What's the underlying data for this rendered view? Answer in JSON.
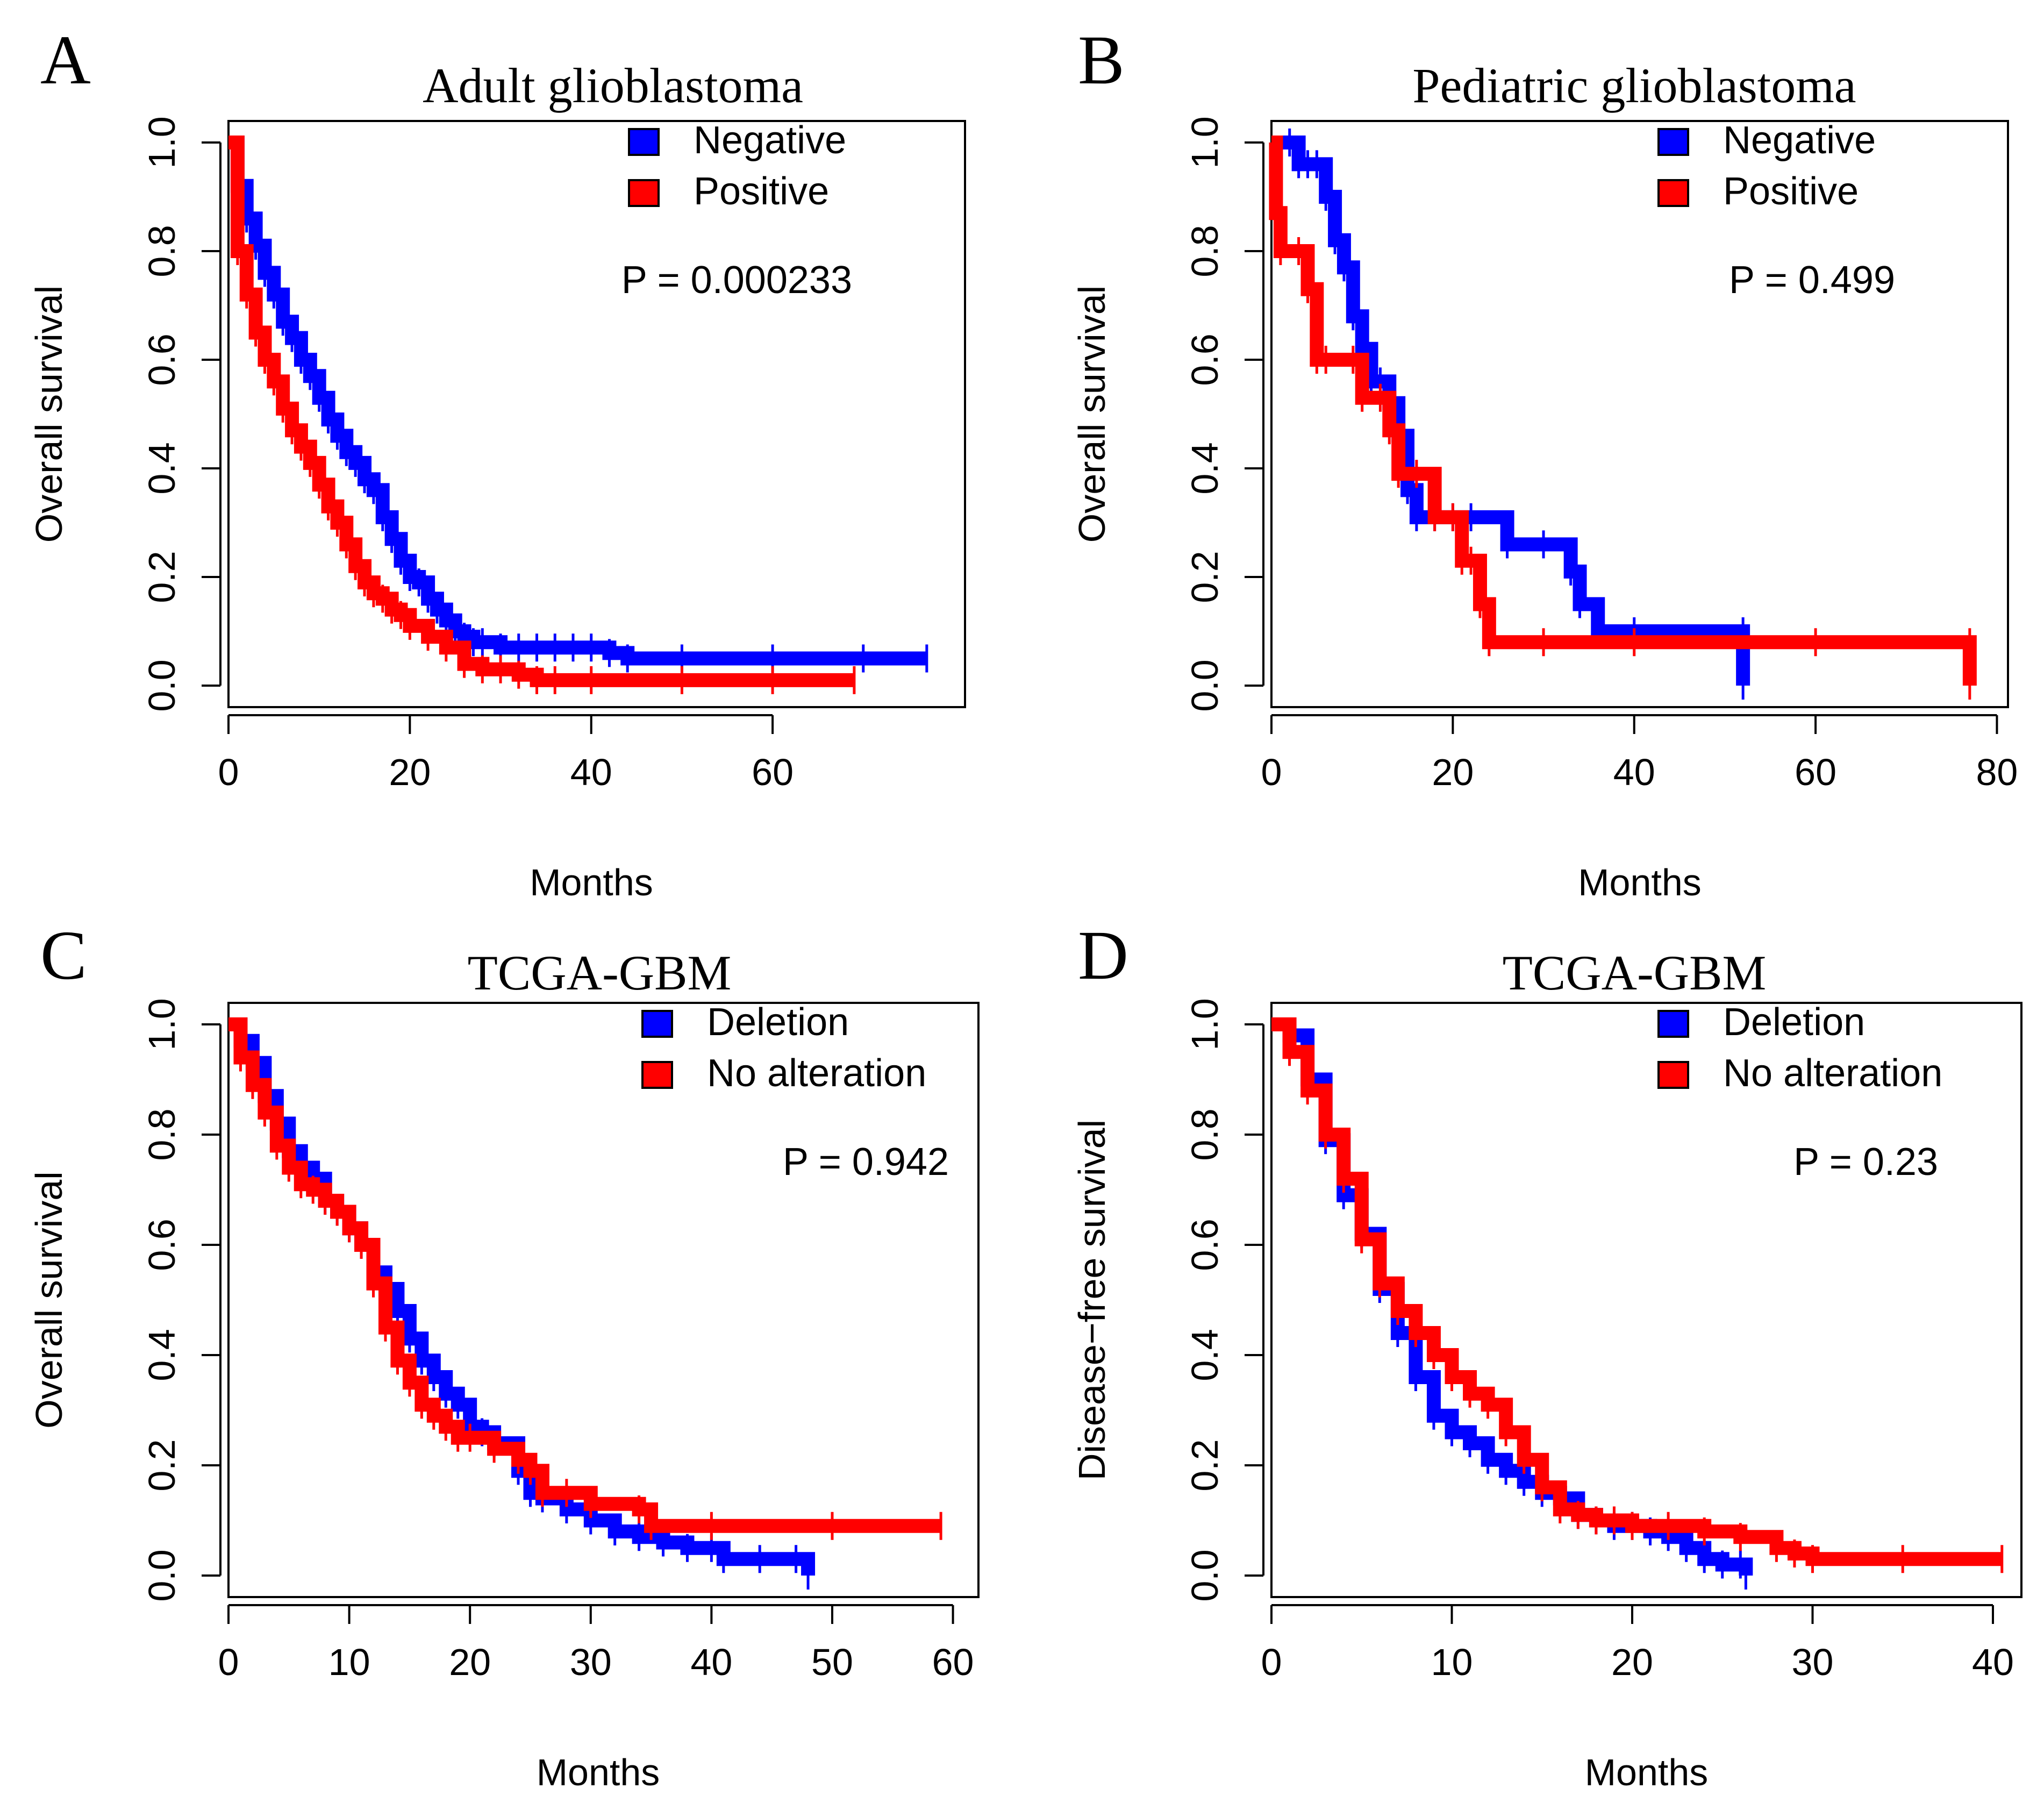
{
  "figure": {
    "background": "#ffffff"
  },
  "chart_data": [
    {
      "type": "line",
      "kind": "kaplan-meier",
      "panel": "A",
      "title": "Adult glioblastoma",
      "xlabel": "Months",
      "ylabel": "Overall survival",
      "xlim": [
        0,
        80
      ],
      "ylim": [
        0,
        1
      ],
      "xticks": [
        "0",
        "20",
        "40",
        "60"
      ],
      "yticks": [
        "0.0",
        "0.2",
        "0.4",
        "0.6",
        "0.8",
        "1.0"
      ],
      "pvalue": "P = 0.000233",
      "legend_position": "top-right",
      "series": [
        {
          "name": "Negative",
          "color": "#0000ff",
          "x": [
            0,
            1,
            2,
            3,
            4,
            5,
            6,
            7,
            8,
            9,
            10,
            11,
            12,
            13,
            14,
            15,
            16,
            17,
            18,
            19,
            20,
            21,
            22,
            23,
            24,
            25,
            26,
            27,
            28,
            30,
            32,
            34,
            36,
            38,
            40,
            42,
            44,
            50,
            60,
            70,
            77
          ],
          "y": [
            1.0,
            0.92,
            0.86,
            0.81,
            0.76,
            0.72,
            0.67,
            0.64,
            0.6,
            0.57,
            0.53,
            0.49,
            0.46,
            0.43,
            0.41,
            0.38,
            0.36,
            0.31,
            0.27,
            0.23,
            0.2,
            0.19,
            0.16,
            0.14,
            0.12,
            0.1,
            0.09,
            0.08,
            0.08,
            0.07,
            0.07,
            0.07,
            0.07,
            0.07,
            0.07,
            0.06,
            0.05,
            0.05,
            0.05,
            0.05,
            0.05
          ]
        },
        {
          "name": "Positive",
          "color": "#ff0000",
          "x": [
            0,
            1,
            2,
            3,
            4,
            5,
            6,
            7,
            8,
            9,
            10,
            11,
            12,
            13,
            14,
            15,
            16,
            17,
            18,
            19,
            20,
            22,
            24,
            26,
            28,
            30,
            32,
            34,
            36,
            40,
            50,
            60,
            69
          ],
          "y": [
            1.0,
            0.8,
            0.72,
            0.65,
            0.6,
            0.56,
            0.51,
            0.47,
            0.44,
            0.41,
            0.37,
            0.33,
            0.3,
            0.26,
            0.22,
            0.19,
            0.17,
            0.16,
            0.14,
            0.13,
            0.11,
            0.09,
            0.07,
            0.04,
            0.03,
            0.03,
            0.02,
            0.01,
            0.01,
            0.01,
            0.01,
            0.01,
            0.01
          ]
        }
      ]
    },
    {
      "type": "line",
      "kind": "kaplan-meier",
      "panel": "B",
      "title": "Pediatric glioblastoma",
      "xlabel": "Months",
      "ylabel": "Overall survival",
      "xlim": [
        0,
        80
      ],
      "ylim": [
        0,
        1
      ],
      "xticks": [
        "0",
        "20",
        "40",
        "60",
        "80"
      ],
      "yticks": [
        "0.0",
        "0.2",
        "0.4",
        "0.6",
        "0.8",
        "1.0"
      ],
      "pvalue": "P = 0.499",
      "legend_position": "top-right",
      "series": [
        {
          "name": "Negative",
          "color": "#0000ff",
          "x": [
            0,
            2,
            3,
            4,
            5,
            6,
            7,
            8,
            9,
            10,
            11,
            12,
            13,
            14,
            15,
            16,
            18,
            20,
            22,
            26,
            30,
            33,
            34,
            36,
            40,
            52,
            52
          ],
          "y": [
            1.0,
            1.0,
            0.96,
            0.96,
            0.96,
            0.9,
            0.82,
            0.77,
            0.68,
            0.62,
            0.56,
            0.56,
            0.52,
            0.46,
            0.36,
            0.31,
            0.31,
            0.31,
            0.31,
            0.26,
            0.26,
            0.21,
            0.15,
            0.1,
            0.1,
            0.1,
            0.0
          ]
        },
        {
          "name": "Positive",
          "color": "#ff0000",
          "x": [
            0,
            0.5,
            1,
            3,
            4,
            5,
            6,
            9,
            10,
            12,
            13,
            14,
            16,
            18,
            20,
            21,
            22,
            23,
            24,
            30,
            40,
            60,
            77,
            77
          ],
          "y": [
            1.0,
            0.87,
            0.8,
            0.8,
            0.73,
            0.6,
            0.6,
            0.6,
            0.53,
            0.53,
            0.47,
            0.39,
            0.39,
            0.31,
            0.31,
            0.23,
            0.23,
            0.15,
            0.08,
            0.08,
            0.08,
            0.08,
            0.08,
            0.0
          ]
        }
      ]
    },
    {
      "type": "line",
      "kind": "kaplan-meier",
      "panel": "C",
      "title": "TCGA-GBM",
      "xlabel": "Months",
      "ylabel": "Overall survival",
      "xlim": [
        0,
        60
      ],
      "ylim": [
        0,
        1
      ],
      "xticks": [
        "0",
        "10",
        "20",
        "30",
        "40",
        "50",
        "60"
      ],
      "yticks": [
        "0.0",
        "0.2",
        "0.4",
        "0.6",
        "0.8",
        "1.0"
      ],
      "pvalue": "P = 0.942",
      "legend_position": "top-right",
      "series": [
        {
          "name": "Deletion",
          "color": "#0000ff",
          "x": [
            0,
            1,
            2,
            3,
            4,
            5,
            6,
            7,
            8,
            9,
            10,
            11,
            12,
            13,
            14,
            15,
            16,
            17,
            18,
            19,
            20,
            21,
            22,
            24,
            25,
            26,
            28,
            30,
            32,
            34,
            36,
            38,
            40,
            41,
            44,
            47,
            48
          ],
          "y": [
            1.0,
            0.97,
            0.93,
            0.87,
            0.82,
            0.77,
            0.74,
            0.72,
            0.68,
            0.66,
            0.63,
            0.6,
            0.55,
            0.52,
            0.48,
            0.43,
            0.39,
            0.36,
            0.33,
            0.31,
            0.27,
            0.26,
            0.24,
            0.19,
            0.15,
            0.14,
            0.12,
            0.1,
            0.08,
            0.07,
            0.06,
            0.05,
            0.05,
            0.03,
            0.03,
            0.03,
            0.0
          ]
        },
        {
          "name": "No alteration",
          "color": "#ff0000",
          "x": [
            0,
            1,
            2,
            3,
            4,
            5,
            6,
            7,
            8,
            9,
            10,
            11,
            12,
            13,
            14,
            15,
            16,
            17,
            18,
            19,
            20,
            22,
            24,
            25,
            26,
            28,
            30,
            34,
            35,
            40,
            50,
            59
          ],
          "y": [
            1.0,
            0.94,
            0.89,
            0.84,
            0.78,
            0.74,
            0.71,
            0.7,
            0.68,
            0.66,
            0.63,
            0.6,
            0.53,
            0.45,
            0.39,
            0.35,
            0.31,
            0.29,
            0.27,
            0.25,
            0.25,
            0.23,
            0.21,
            0.19,
            0.15,
            0.15,
            0.13,
            0.12,
            0.09,
            0.09,
            0.09,
            0.09
          ]
        }
      ]
    },
    {
      "type": "line",
      "kind": "kaplan-meier",
      "panel": "D",
      "title": "TCGA-GBM",
      "xlabel": "Months",
      "ylabel": "Disease−free survival",
      "xlim": [
        0,
        40
      ],
      "ylim": [
        0,
        1
      ],
      "xticks": [
        "0",
        "10",
        "20",
        "30",
        "40"
      ],
      "yticks": [
        "0.0",
        "0.2",
        "0.4",
        "0.6",
        "0.8",
        "1.0"
      ],
      "pvalue": "P = 0.23",
      "legend_position": "top-right",
      "series": [
        {
          "name": "Deletion",
          "color": "#0000ff",
          "x": [
            0,
            1,
            2,
            3,
            4,
            5,
            6,
            7,
            8,
            9,
            10,
            11,
            12,
            13,
            14,
            15,
            16,
            17,
            18,
            19,
            20,
            21,
            22,
            23,
            24,
            25,
            26,
            26.3
          ],
          "y": [
            1.0,
            0.98,
            0.9,
            0.79,
            0.69,
            0.62,
            0.52,
            0.44,
            0.36,
            0.29,
            0.26,
            0.24,
            0.21,
            0.19,
            0.17,
            0.15,
            0.14,
            0.11,
            0.1,
            0.09,
            0.09,
            0.08,
            0.07,
            0.05,
            0.03,
            0.02,
            0.02,
            0.0
          ]
        },
        {
          "name": "No alteration",
          "color": "#ff0000",
          "x": [
            0,
            1,
            2,
            3,
            4,
            5,
            6,
            7,
            8,
            9,
            10,
            11,
            12,
            13,
            14,
            15,
            16,
            17,
            18,
            19,
            20,
            22,
            24,
            26,
            28,
            29,
            30,
            35,
            40.5
          ],
          "y": [
            1.0,
            0.95,
            0.88,
            0.8,
            0.72,
            0.61,
            0.53,
            0.48,
            0.44,
            0.4,
            0.36,
            0.33,
            0.31,
            0.26,
            0.21,
            0.16,
            0.12,
            0.11,
            0.1,
            0.1,
            0.09,
            0.09,
            0.08,
            0.07,
            0.05,
            0.04,
            0.03,
            0.03,
            0.03
          ]
        }
      ]
    }
  ]
}
